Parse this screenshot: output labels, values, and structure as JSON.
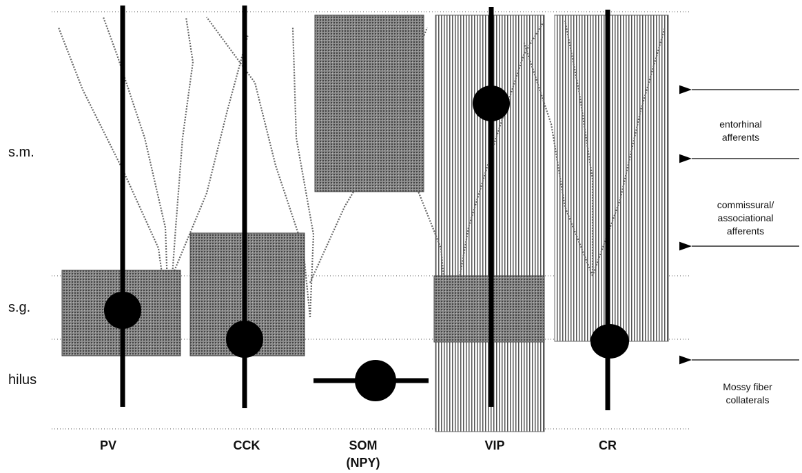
{
  "layers": [
    {
      "label": "s.m."
    },
    {
      "label": "s.g."
    },
    {
      "label": "hilus"
    }
  ],
  "cells": [
    {
      "label": "PV"
    },
    {
      "label": "CCK"
    },
    {
      "label": "SOM",
      "sublabel": "(NPY)"
    },
    {
      "label": "VIP"
    },
    {
      "label": "CR"
    }
  ],
  "afferents": [
    {
      "lines": [
        "entorhinal",
        "afferents"
      ]
    },
    {
      "lines": [
        "commissural/",
        "associational",
        "afferents"
      ]
    },
    {
      "lines": [
        "Mossy fiber",
        "collaterals"
      ]
    }
  ]
}
